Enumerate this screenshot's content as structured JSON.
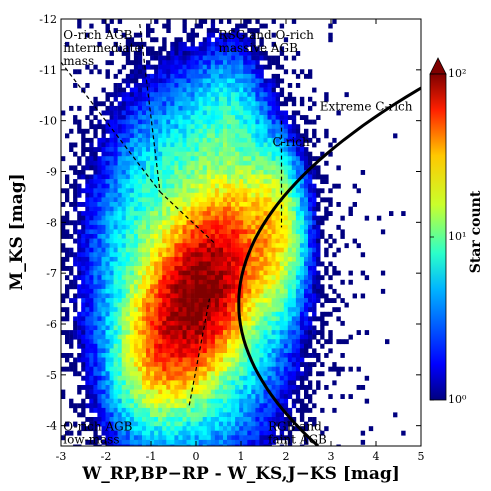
{
  "chart_data": {
    "type": "heatmap",
    "title": "",
    "xlabel": "W_RP,BP−RP - W_KS,J−KS [mag]",
    "ylabel": "M_KS [mag]",
    "x_ticks": [
      "-3",
      "-2",
      "-1",
      "0",
      "1",
      "2",
      "3",
      "4",
      "5"
    ],
    "y_ticks": [
      "-4",
      "-5",
      "-6",
      "-7",
      "-8",
      "-9",
      "-10",
      "-11",
      "-12"
    ],
    "xlim": [
      -3,
      5
    ],
    "ylim": [
      -3.6,
      -12
    ],
    "y_inverted": true,
    "colorbar": {
      "label": "Star count",
      "scale": "log",
      "range": [
        1,
        100
      ],
      "ticks": [
        "10⁰",
        "10¹",
        "10²"
      ],
      "extend": "max",
      "colormap": "jet"
    },
    "density_peaks": [
      {
        "x": 0.0,
        "y": -6.6,
        "level": "high"
      },
      {
        "x": 1.7,
        "y": -7.8,
        "level": "medium"
      }
    ],
    "region_labels": [
      {
        "text": "O-rich AGB\nintermediate\nmass",
        "x": -2.95,
        "y": -11.8
      },
      {
        "text": "RSG and O-rich\nmassive AGB",
        "x": 0.5,
        "y": -11.8
      },
      {
        "text": "Extreme C-rich",
        "x": 2.75,
        "y": -10.4
      },
      {
        "text": "C-rich",
        "x": 1.7,
        "y": -9.7
      },
      {
        "text": "O-rich AGB\nlow-mass",
        "x": -2.95,
        "y": -4.1
      },
      {
        "text": "RGB and\nfaint AGB",
        "x": 1.6,
        "y": -4.1
      }
    ],
    "boundaries": {
      "curve": "solid thick black, from (3.3,-12) bowing left to (0.95,-6.4) then out to (3.9,-3.6)",
      "dashed_lines": [
        {
          "from": [
            -3,
            -11.15
          ],
          "to": [
            -0.8,
            -8.6
          ]
        },
        {
          "from": [
            -0.8,
            -8.6
          ],
          "to": [
            0.4,
            -7.6
          ]
        },
        {
          "from": [
            -1.25,
            -11.9
          ],
          "to": [
            -0.8,
            -8.6
          ]
        },
        {
          "from": [
            1.9,
            -10.0
          ],
          "to": [
            1.9,
            -7.9
          ]
        },
        {
          "from": [
            -0.15,
            -4.4
          ],
          "to": [
            0.3,
            -6.5
          ]
        }
      ]
    }
  }
}
